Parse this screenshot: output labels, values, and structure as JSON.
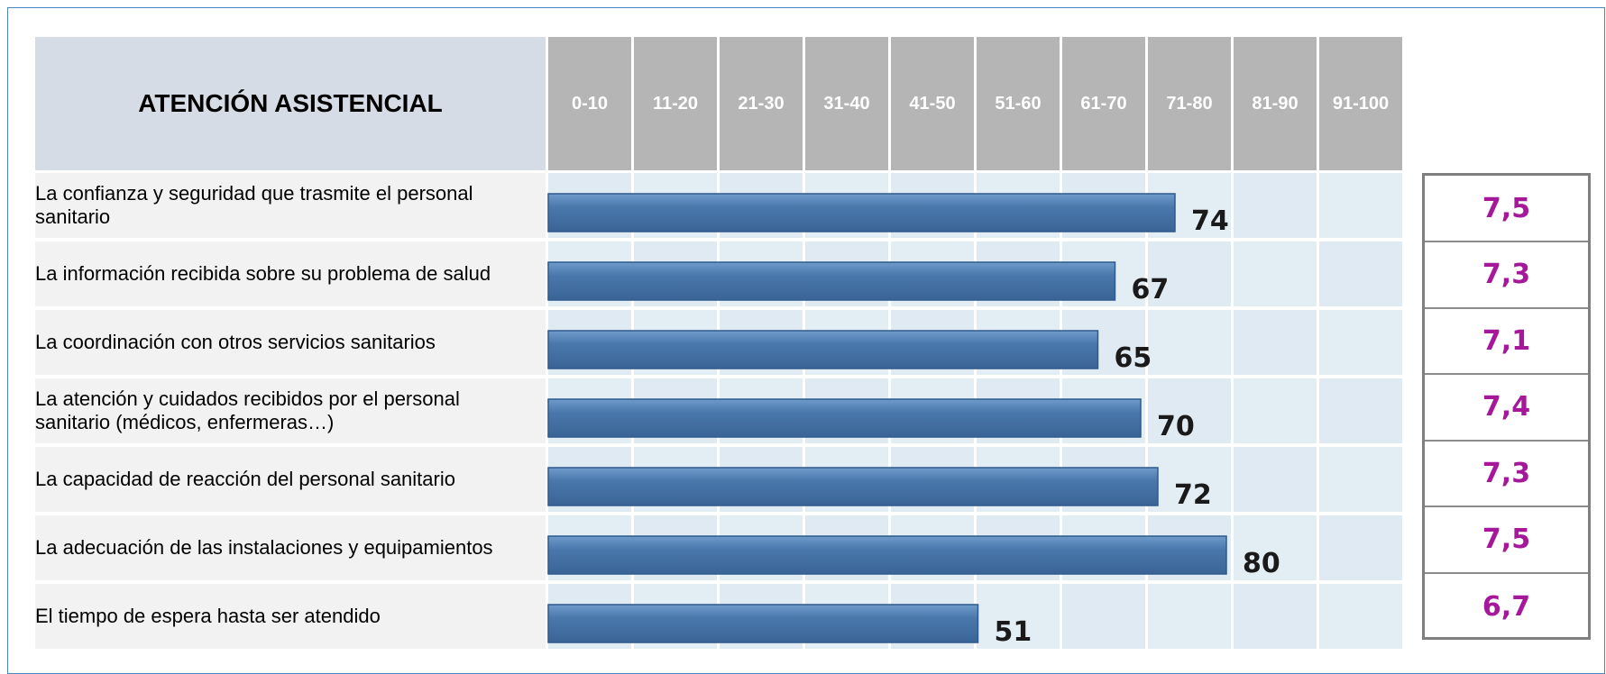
{
  "header": {
    "title": "ATENCIÓN ASISTENCIAL",
    "ranges": [
      "0-10",
      "11-20",
      "21-30",
      "31-40",
      "41-50",
      "51-60",
      "61-70",
      "71-80",
      "81-90",
      "91-100"
    ]
  },
  "colors": {
    "bar_fill": "#4a78ac",
    "bar_highlight": "#6f9bcb",
    "score_text": "#a6189a",
    "header_gray": "#b5b5b5"
  },
  "chart_data": {
    "type": "bar",
    "orientation": "horizontal",
    "categories": [
      "La confianza y seguridad que trasmite el personal sanitario",
      "La información recibida sobre su problema de salud",
      "La coordinación con otros servicios sanitarios",
      "La atención y cuidados recibidos por el personal sanitario (médicos, enfermeras…)",
      "La capacidad de reacción del personal sanitario",
      "La adecuación de las instalaciones y equipamientos",
      "El tiempo de espera hasta ser atendido"
    ],
    "values": [
      74,
      67,
      65,
      70,
      72,
      80,
      51
    ],
    "xlim": [
      0,
      100
    ],
    "scores": [
      "7,5",
      "7,3",
      "7,1",
      "7,4",
      "7,3",
      "7,5",
      "6,7"
    ]
  }
}
